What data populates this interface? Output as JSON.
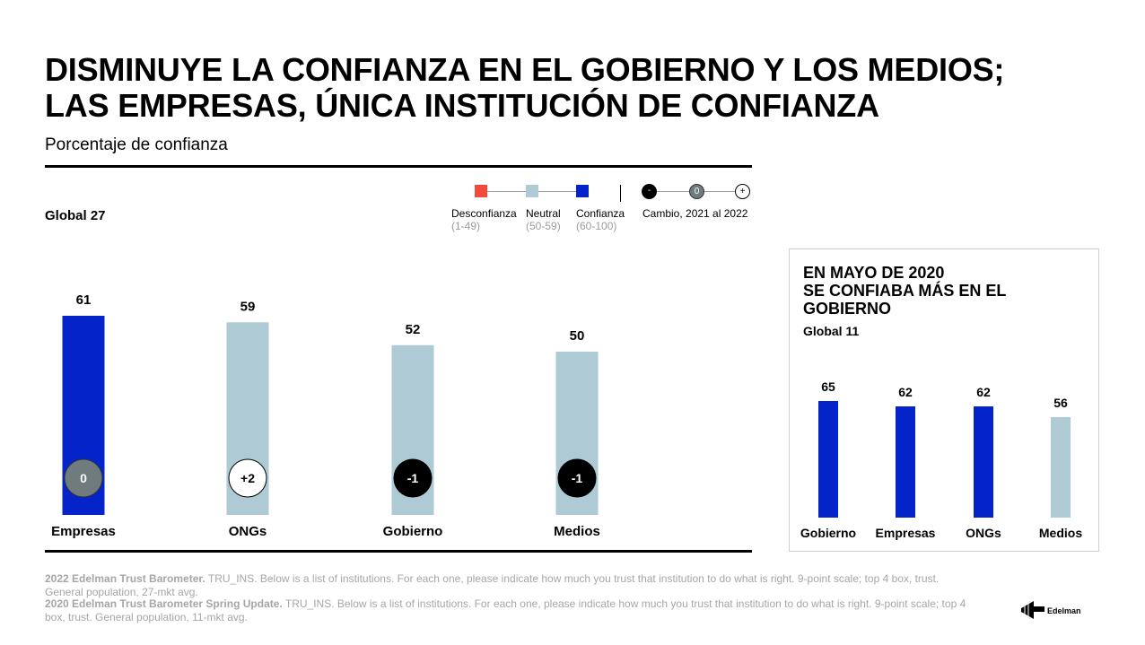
{
  "title_line1": "DISMINUYE LA CONFIANZA EN EL GOBIERNO Y LOS MEDIOS;",
  "title_line2": "LAS EMPRESAS, ÚNICA INSTITUCIÓN DE CONFIANZA",
  "subtitle": "Porcentaje de confianza",
  "legend": {
    "items": [
      {
        "label": "Desconfianza",
        "range": "(1-49)",
        "color": "#f4493d"
      },
      {
        "label": "Neutral",
        "range": "(50-59)",
        "color": "#aecad4"
      },
      {
        "label": "Confianza",
        "range": "(60-100)",
        "color": "#0424c9"
      }
    ],
    "change_symbols": [
      "-",
      "0",
      "+"
    ],
    "change_label": "Cambio, 2021 al 2022"
  },
  "colors": {
    "trust": "#0424c9",
    "neutral": "#aecad4",
    "distrust": "#f4493d",
    "change_zero": "#6f7b7c"
  },
  "chart_data": [
    {
      "type": "bar",
      "subtitle": "Global 27",
      "categories": [
        "Empresas",
        "ONGs",
        "Gobierno",
        "Medios"
      ],
      "values": [
        61,
        59,
        52,
        50
      ],
      "change": [
        "0",
        "+2",
        "-1",
        "-1"
      ],
      "ylim": [
        0,
        61
      ]
    },
    {
      "type": "bar",
      "title": "EN MAYO DE 2020 SE CONFIABA MÁS EN EL GOBIERNO",
      "subtitle": "Global 11",
      "categories": [
        "Gobierno",
        "Empresas",
        "ONGs",
        "Medios"
      ],
      "values": [
        65,
        62,
        62,
        56
      ],
      "ylim": [
        0,
        100
      ]
    }
  ],
  "side": {
    "title_line1": "EN MAYO DE 2020",
    "title_line2": "SE CONFIABA MÁS EN EL",
    "title_line3": "GOBIERNO",
    "global": "Global 11"
  },
  "footnotes": [
    {
      "bold": "2022 Edelman Trust Barometer.",
      "text": " TRU_INS. Below is a list of institutions. For each one, please indicate how much you trust that institution to do what is right. 9-point scale; top 4 box, trust. General population, 27-mkt avg."
    },
    {
      "bold": "2020 Edelman Trust Barometer Spring Update.",
      "text": " TRU_INS. Below is a list of institutions. For each one, please indicate how much you trust that institution to do what is right. 9-point scale; top 4 box, trust. General population, 11-mkt avg."
    }
  ],
  "logo_text": "Edelman"
}
